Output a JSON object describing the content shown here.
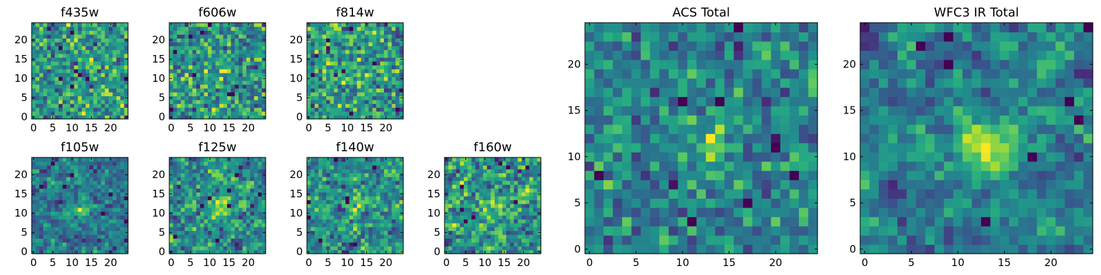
{
  "chart_data": [
    {
      "type": "heatmap",
      "title": "f435w",
      "xlim": [
        0,
        24
      ],
      "ylim": [
        0,
        24
      ],
      "xticks": [
        "0",
        "5",
        "10",
        "15",
        "20"
      ],
      "yticks": [
        "0",
        "5",
        "10",
        "15",
        "20"
      ],
      "colormap": "viridis",
      "seed": 11,
      "gaussian_amplitude": 0.05,
      "noise_smoothing": 0.0
    },
    {
      "type": "heatmap",
      "title": "f606w",
      "xlim": [
        0,
        24
      ],
      "ylim": [
        0,
        24
      ],
      "xticks": [
        "0",
        "5",
        "10",
        "15",
        "20"
      ],
      "yticks": [
        "0",
        "5",
        "10",
        "15",
        "20"
      ],
      "colormap": "viridis",
      "seed": 23,
      "gaussian_amplitude": 0.05,
      "noise_smoothing": 0.0
    },
    {
      "type": "heatmap",
      "title": "f814w",
      "xlim": [
        0,
        24
      ],
      "ylim": [
        0,
        24
      ],
      "xticks": [
        "0",
        "5",
        "10",
        "15",
        "20"
      ],
      "yticks": [
        "0",
        "5",
        "10",
        "15",
        "20"
      ],
      "colormap": "viridis",
      "seed": 37,
      "gaussian_amplitude": 0.12,
      "noise_smoothing": 0.0
    },
    {
      "type": "heatmap",
      "title": "f105w",
      "xlim": [
        0,
        24
      ],
      "ylim": [
        0,
        24
      ],
      "xticks": [
        "0",
        "5",
        "10",
        "15",
        "20"
      ],
      "yticks": [
        "0",
        "5",
        "10",
        "15",
        "20"
      ],
      "colormap": "viridis",
      "seed": 41,
      "gaussian_amplitude": 0.25,
      "noise_smoothing": 0.4
    },
    {
      "type": "heatmap",
      "title": "f125w",
      "xlim": [
        0,
        24
      ],
      "ylim": [
        0,
        24
      ],
      "xticks": [
        "0",
        "5",
        "10",
        "15",
        "20"
      ],
      "yticks": [
        "0",
        "5",
        "10",
        "15",
        "20"
      ],
      "colormap": "viridis",
      "seed": 53,
      "gaussian_amplitude": 0.25,
      "noise_smoothing": 0.4
    },
    {
      "type": "heatmap",
      "title": "f140w",
      "xlim": [
        0,
        24
      ],
      "ylim": [
        0,
        24
      ],
      "xticks": [
        "0",
        "5",
        "10",
        "15",
        "20"
      ],
      "yticks": [
        "0",
        "5",
        "10",
        "15",
        "20"
      ],
      "colormap": "viridis",
      "seed": 67,
      "gaussian_amplitude": 0.15,
      "noise_smoothing": 0.4
    },
    {
      "type": "heatmap",
      "title": "f160w",
      "xlim": [
        0,
        24
      ],
      "ylim": [
        0,
        24
      ],
      "xticks": [
        "0",
        "5",
        "10",
        "15",
        "20"
      ],
      "yticks": [
        "0",
        "5",
        "10",
        "15",
        "20"
      ],
      "colormap": "viridis",
      "seed": 79,
      "gaussian_amplitude": 0.15,
      "noise_smoothing": 0.4
    },
    {
      "type": "heatmap",
      "title": "ACS Total",
      "xlim": [
        0,
        24
      ],
      "ylim": [
        0,
        24
      ],
      "xticks": [
        "0",
        "5",
        "10",
        "15",
        "20"
      ],
      "yticks": [
        "0",
        "5",
        "10",
        "15",
        "20"
      ],
      "colormap": "viridis",
      "seed": 97,
      "gaussian_amplitude": 0.22,
      "noise_smoothing": 0.2
    },
    {
      "type": "heatmap",
      "title": "WFC3 IR Total",
      "xlim": [
        0,
        24
      ],
      "ylim": [
        0,
        24
      ],
      "xticks": [
        "0",
        "5",
        "10",
        "15",
        "20"
      ],
      "yticks": [
        "0",
        "5",
        "10",
        "15",
        "20"
      ],
      "colormap": "viridis",
      "seed": 113,
      "gaussian_amplitude": 0.35,
      "noise_smoothing": 0.6
    }
  ]
}
